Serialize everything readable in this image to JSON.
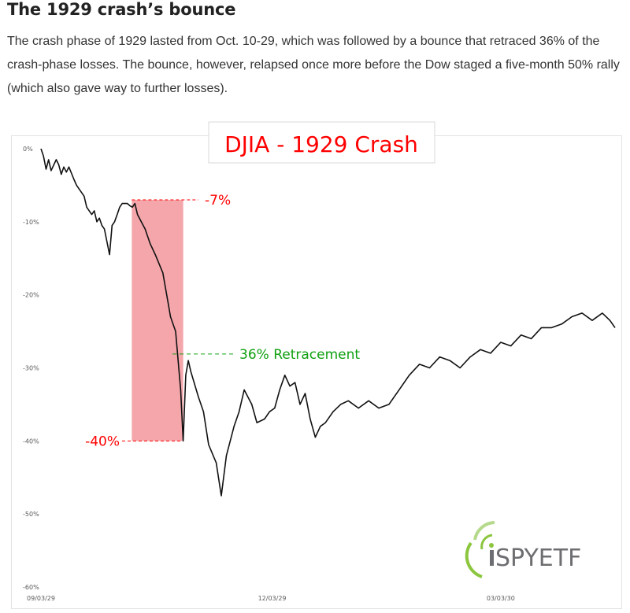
{
  "article": {
    "title": "The 1929 crash’s bounce",
    "body": "The crash phase of 1929 lasted from Oct. 10-29, which was followed by a bounce that retraced 36% of the crash-phase losses. The bounce, however, relapsed once more before the Dow staged a five-month 50% rally (which also gave way to further losses)."
  },
  "chart_data": {
    "type": "line",
    "title": "DJIA - 1929 Crash",
    "xlabel": "",
    "ylabel": "",
    "ylim": [
      -60,
      0
    ],
    "yticks": [
      0,
      -10,
      -20,
      -30,
      -40,
      -50,
      -60
    ],
    "ytick_labels": [
      "0%",
      "-10%",
      "-20%",
      "-30%",
      "-40%",
      "-50%",
      "-60%"
    ],
    "xtick_labels": [
      "09/03/29",
      "12/03/29",
      "03/03/30"
    ],
    "xtick_dates": [
      "1929-09-03",
      "1929-12-03",
      "1930-03-03"
    ],
    "grid": false,
    "series": [
      {
        "color": "#111111",
        "x": [
          "1929-09-03",
          "1929-09-04",
          "1929-09-05",
          "1929-09-06",
          "1929-09-07",
          "1929-09-09",
          "1929-09-10",
          "1929-09-11",
          "1929-09-12",
          "1929-09-13",
          "1929-09-14",
          "1929-09-16",
          "1929-09-17",
          "1929-09-18",
          "1929-09-19",
          "1929-09-20",
          "1929-09-21",
          "1929-09-23",
          "1929-09-24",
          "1929-09-25",
          "1929-09-26",
          "1929-09-27",
          "1929-09-28",
          "1929-09-30",
          "1929-10-01",
          "1929-10-02",
          "1929-10-03",
          "1929-10-04",
          "1929-10-05",
          "1929-10-07",
          "1929-10-08",
          "1929-10-09",
          "1929-10-10",
          "1929-10-11",
          "1929-10-14",
          "1929-10-16",
          "1929-10-18",
          "1929-10-21",
          "1929-10-23",
          "1929-10-24",
          "1929-10-26",
          "1929-10-28",
          "1929-10-29",
          "1929-10-30",
          "1929-10-31",
          "1929-11-01",
          "1929-11-04",
          "1929-11-06",
          "1929-11-08",
          "1929-11-11",
          "1929-11-13",
          "1929-11-15",
          "1929-11-18",
          "1929-11-20",
          "1929-11-22",
          "1929-11-25",
          "1929-11-27",
          "1929-11-30",
          "1929-12-02",
          "1929-12-04",
          "1929-12-06",
          "1929-12-08",
          "1929-12-10",
          "1929-12-12",
          "1929-12-14",
          "1929-12-16",
          "1929-12-18",
          "1929-12-20",
          "1929-12-22",
          "1929-12-24",
          "1929-12-27",
          "1929-12-30",
          "1930-01-02",
          "1930-01-06",
          "1930-01-10",
          "1930-01-14",
          "1930-01-18",
          "1930-01-22",
          "1930-01-26",
          "1930-01-30",
          "1930-02-03",
          "1930-02-07",
          "1930-02-11",
          "1930-02-15",
          "1930-02-19",
          "1930-02-23",
          "1930-02-27",
          "1930-03-03",
          "1930-03-07",
          "1930-03-11",
          "1930-03-15",
          "1930-03-19",
          "1930-03-23",
          "1930-03-27",
          "1930-03-31",
          "1930-04-04",
          "1930-04-08",
          "1930-04-12",
          "1930-04-15",
          "1930-04-17"
        ],
        "values": [
          0,
          -1,
          -2.8,
          -1.5,
          -3,
          -1.5,
          -2.2,
          -3.5,
          -2.5,
          -3.2,
          -2.5,
          -4.2,
          -5,
          -5.5,
          -6,
          -6.5,
          -8,
          -9,
          -8.5,
          -10,
          -9.5,
          -10.5,
          -11,
          -14.5,
          -10.5,
          -10,
          -9,
          -8,
          -7.5,
          -7.5,
          -7.8,
          -8,
          -7.5,
          -9,
          -11,
          -13,
          -14.5,
          -17,
          -21,
          -23,
          -25,
          -33,
          -40,
          -31,
          -29,
          -30.5,
          -34,
          -36,
          -40.5,
          -43,
          -47.5,
          -42,
          -38,
          -36,
          -33,
          -35,
          -37.5,
          -37,
          -36,
          -35.5,
          -33,
          -31,
          -32.5,
          -32,
          -35,
          -33.5,
          -37,
          -39.5,
          -38,
          -37.5,
          -36,
          -35,
          -34.5,
          -35.5,
          -34.5,
          -35.5,
          -35,
          -33,
          -31,
          -29.5,
          -30,
          -28.5,
          -29,
          -30,
          -28.5,
          -27.5,
          -28,
          -26.5,
          -27,
          -25.5,
          -26,
          -24.5,
          -24.5,
          -24,
          -23,
          -22.5,
          -23.5,
          -22.5,
          -23.5,
          -24.5
        ]
      }
    ],
    "shaded_region": {
      "x": [
        "1929-10-10",
        "1929-10-29"
      ],
      "y": [
        -7,
        -40
      ],
      "color": "#f4a6ab"
    },
    "annotations": [
      {
        "text": "-7%",
        "x": "1929-10-10",
        "y": -7,
        "color": "#ff0000"
      },
      {
        "text": "-40%",
        "x": "1929-10-29",
        "y": -40,
        "color": "#ff0000"
      },
      {
        "text": "36% Retracement",
        "x": "1929-10-31",
        "y": -28,
        "color": "#10a010"
      }
    ]
  },
  "logo": {
    "text": "SPYETF",
    "icon": "ispyetf-logo-icon",
    "colors": [
      "#8cc63f",
      "#6d6e71"
    ]
  }
}
